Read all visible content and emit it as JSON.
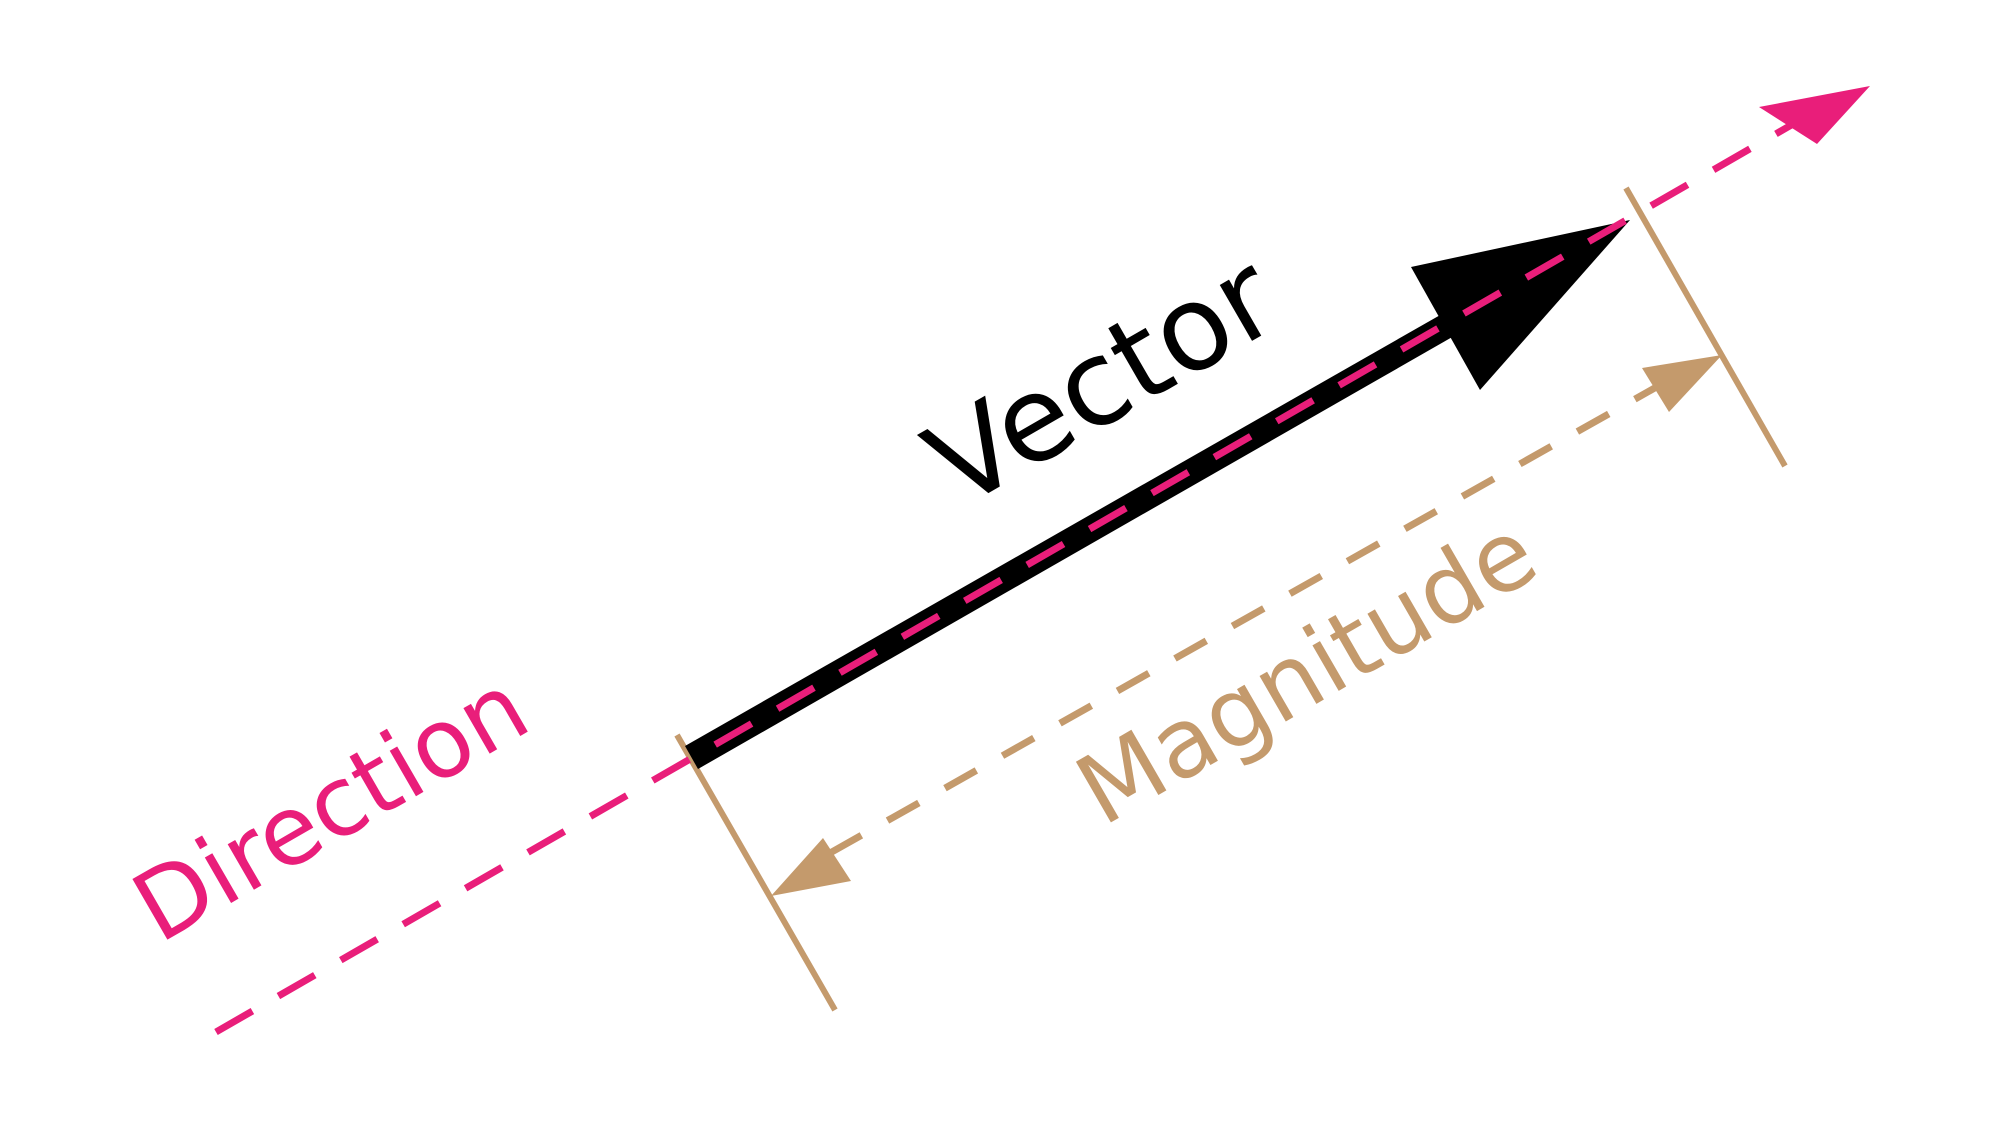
{
  "labels": {
    "vector": "Vector",
    "direction": "Direction",
    "magnitude": "Magnitude"
  },
  "colors": {
    "vector": "#000000",
    "direction": "#e91e7a",
    "magnitude": "#c49a6c",
    "background": "#ffffff"
  },
  "icons": {
    "vector_head": "arrowhead",
    "direction_head": "arrowhead",
    "magnitude_heads": "double-arrowhead"
  }
}
